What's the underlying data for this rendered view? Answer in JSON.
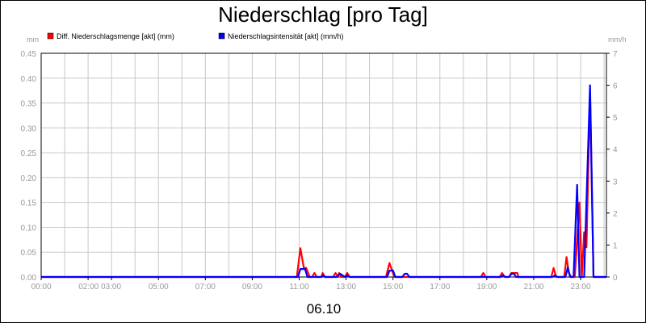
{
  "chart_data": {
    "type": "line",
    "title": "Niederschlag [pro Tag]",
    "date_label": "06.10",
    "y_left": {
      "unit": "mm",
      "min": 0,
      "max": 0.45,
      "ticks": [
        0.0,
        0.05,
        0.1,
        0.15,
        0.2,
        0.25,
        0.3,
        0.35,
        0.4,
        0.45
      ],
      "tick_labels": [
        "0.00",
        "0.05",
        "0.10",
        "0.15",
        "0.20",
        "0.25",
        "0.30",
        "0.35",
        "0.40",
        "0.45"
      ]
    },
    "y_right": {
      "unit": "mm/h",
      "min": 0,
      "max": 7,
      "ticks": [
        0,
        1,
        2,
        3,
        4,
        5,
        6,
        7
      ],
      "tick_labels": [
        "0",
        "1",
        "2",
        "3",
        "4",
        "5",
        "6",
        "7"
      ]
    },
    "x": {
      "min": 0,
      "max": 24.1,
      "tick_hours": [
        0,
        2,
        3,
        5,
        7,
        9,
        11,
        13,
        15,
        17,
        19,
        21,
        23
      ],
      "tick_labels": [
        "00:00",
        "02:00 03:00",
        "05:00",
        "07:00",
        "09:00",
        "11:00",
        "13:00",
        "15:00",
        "17:00",
        "19:00",
        "21:00",
        "23:00"
      ],
      "label_hours": [
        0,
        2.5,
        5,
        7,
        9,
        11,
        13,
        15,
        17,
        19,
        21,
        23
      ],
      "grid_hours": [
        0,
        1,
        2,
        3,
        4,
        5,
        6,
        7,
        8,
        9,
        10,
        11,
        12,
        13,
        14,
        15,
        16,
        17,
        18,
        19,
        20,
        21,
        22,
        23,
        24
      ]
    },
    "grid": true,
    "legend_position": "top-left",
    "series": [
      {
        "name": "Diff. Niederschlagsmenge [akt] (mm)",
        "color": "#ff0000",
        "axis": "left",
        "points": [
          [
            0,
            0
          ],
          [
            10.9,
            0
          ],
          [
            11.05,
            0.058
          ],
          [
            11.2,
            0.018
          ],
          [
            11.3,
            0.018
          ],
          [
            11.45,
            0
          ],
          [
            11.55,
            0
          ],
          [
            11.65,
            0.008
          ],
          [
            11.75,
            0
          ],
          [
            11.95,
            0
          ],
          [
            12.0,
            0.008
          ],
          [
            12.1,
            0
          ],
          [
            12.45,
            0
          ],
          [
            12.55,
            0.008
          ],
          [
            12.65,
            0
          ],
          [
            12.7,
            0.008
          ],
          [
            12.8,
            0
          ],
          [
            12.95,
            0
          ],
          [
            13.05,
            0.008
          ],
          [
            13.15,
            0
          ],
          [
            14.7,
            0
          ],
          [
            14.85,
            0.028
          ],
          [
            15.0,
            0.008
          ],
          [
            15.05,
            0
          ],
          [
            18.75,
            0
          ],
          [
            18.85,
            0.008
          ],
          [
            18.95,
            0
          ],
          [
            19.55,
            0
          ],
          [
            19.65,
            0.008
          ],
          [
            19.75,
            0
          ],
          [
            19.95,
            0
          ],
          [
            20.05,
            0.008
          ],
          [
            20.2,
            0.008
          ],
          [
            20.3,
            0.008
          ],
          [
            20.35,
            0
          ],
          [
            21.75,
            0
          ],
          [
            21.85,
            0.018
          ],
          [
            21.95,
            0
          ],
          [
            22.3,
            0
          ],
          [
            22.4,
            0.04
          ],
          [
            22.5,
            0.008
          ],
          [
            22.6,
            0
          ],
          [
            22.75,
            0
          ],
          [
            22.95,
            0.15
          ],
          [
            23.05,
            0
          ],
          [
            23.15,
            0.09
          ],
          [
            23.25,
            0.06
          ],
          [
            23.4,
            0.372
          ],
          [
            23.55,
            0
          ],
          [
            24.1,
            0
          ]
        ]
      },
      {
        "name": "Niederschlagsintensität [akt] (mm/h)",
        "color": "#0000ff",
        "axis": "right",
        "points": [
          [
            0,
            0
          ],
          [
            10.95,
            0
          ],
          [
            11.05,
            0.25
          ],
          [
            11.25,
            0.25
          ],
          [
            11.35,
            0
          ],
          [
            11.95,
            0
          ],
          [
            12.0,
            0.05
          ],
          [
            12.1,
            0
          ],
          [
            12.6,
            0
          ],
          [
            12.75,
            0.1
          ],
          [
            12.95,
            0
          ],
          [
            13.05,
            0.05
          ],
          [
            13.15,
            0
          ],
          [
            14.75,
            0
          ],
          [
            14.85,
            0.2
          ],
          [
            15.0,
            0.2
          ],
          [
            15.1,
            0
          ],
          [
            15.4,
            0
          ],
          [
            15.5,
            0.1
          ],
          [
            15.6,
            0.1
          ],
          [
            15.7,
            0
          ],
          [
            19.6,
            0
          ],
          [
            19.7,
            0.05
          ],
          [
            19.8,
            0
          ],
          [
            19.95,
            0
          ],
          [
            20.05,
            0.1
          ],
          [
            20.15,
            0.1
          ],
          [
            20.25,
            0
          ],
          [
            21.8,
            0
          ],
          [
            21.9,
            0.05
          ],
          [
            22.0,
            0
          ],
          [
            22.35,
            0
          ],
          [
            22.45,
            0.3
          ],
          [
            22.55,
            0
          ],
          [
            22.7,
            0
          ],
          [
            22.85,
            2.88
          ],
          [
            22.95,
            0
          ],
          [
            23.15,
            0
          ],
          [
            23.4,
            6.0
          ],
          [
            23.55,
            0
          ],
          [
            24.1,
            0
          ]
        ]
      }
    ]
  }
}
